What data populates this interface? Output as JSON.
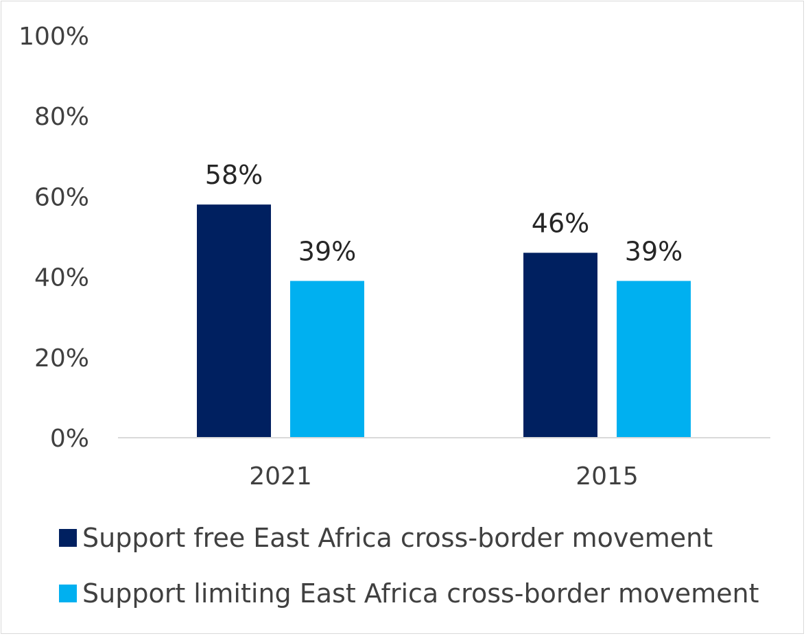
{
  "chart_data": {
    "type": "bar",
    "categories": [
      "2021",
      "2015"
    ],
    "series": [
      {
        "name": "Support free East Africa cross-border movement",
        "values": [
          58,
          46
        ],
        "labels": [
          "58%",
          "46%"
        ],
        "color": "#002060"
      },
      {
        "name": "Support limiting East Africa cross-border movement",
        "values": [
          39,
          39
        ],
        "labels": [
          "39%",
          "39%"
        ],
        "color": "#00b0f0"
      }
    ],
    "ylim": [
      0,
      100
    ],
    "yticks": [
      "0%",
      "20%",
      "40%",
      "60%",
      "80%",
      "100%"
    ],
    "grid": false,
    "legend_position": "bottom"
  }
}
